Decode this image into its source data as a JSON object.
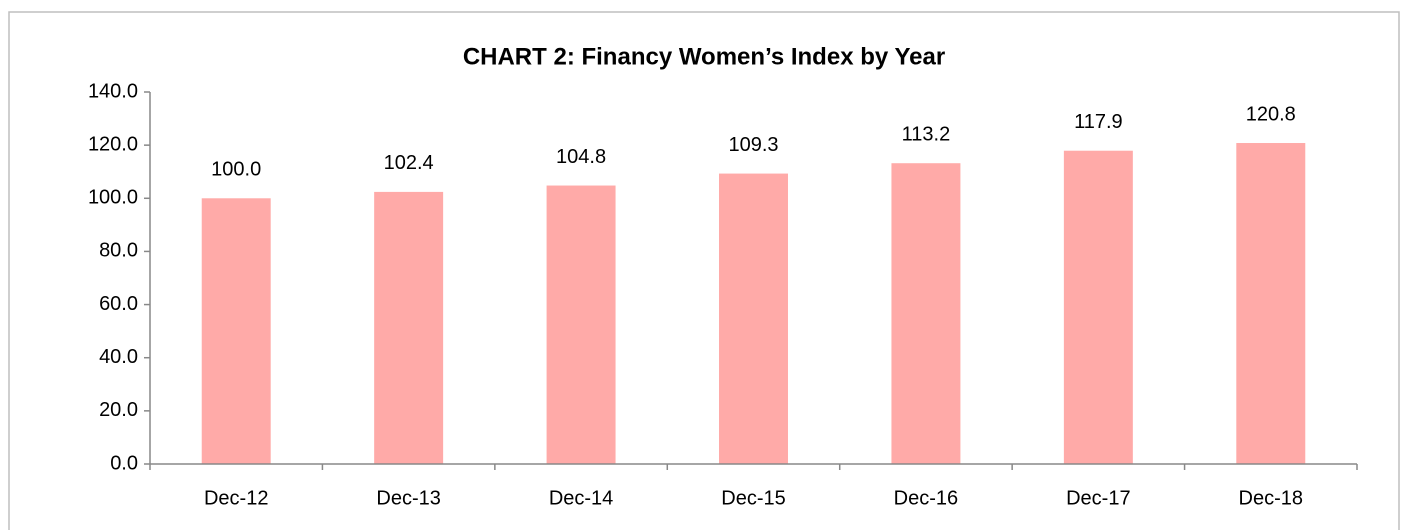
{
  "chart_data": {
    "type": "bar",
    "title": "CHART 2: Financy Women’s Index by Year",
    "categories": [
      "Dec-12",
      "Dec-13",
      "Dec-14",
      "Dec-15",
      "Dec-16",
      "Dec-17",
      "Dec-18"
    ],
    "values": [
      100.0,
      102.4,
      104.8,
      109.3,
      113.2,
      117.9,
      120.8
    ],
    "value_labels": [
      "100.0",
      "102.4",
      "104.8",
      "109.3",
      "113.2",
      "117.9",
      "120.8"
    ],
    "color": "#ffaaa8",
    "ylim": [
      0,
      140
    ],
    "yticks": [
      {
        "value": 0,
        "label": "0.0"
      },
      {
        "value": 20,
        "label": "20.0"
      },
      {
        "value": 40,
        "label": "40.0"
      },
      {
        "value": 60,
        "label": "60.0"
      },
      {
        "value": 80,
        "label": "80.0"
      },
      {
        "value": 100,
        "label": "100.0"
      },
      {
        "value": 120,
        "label": "120.0"
      },
      {
        "value": 140,
        "label": "140.0"
      }
    ],
    "grid": false
  }
}
